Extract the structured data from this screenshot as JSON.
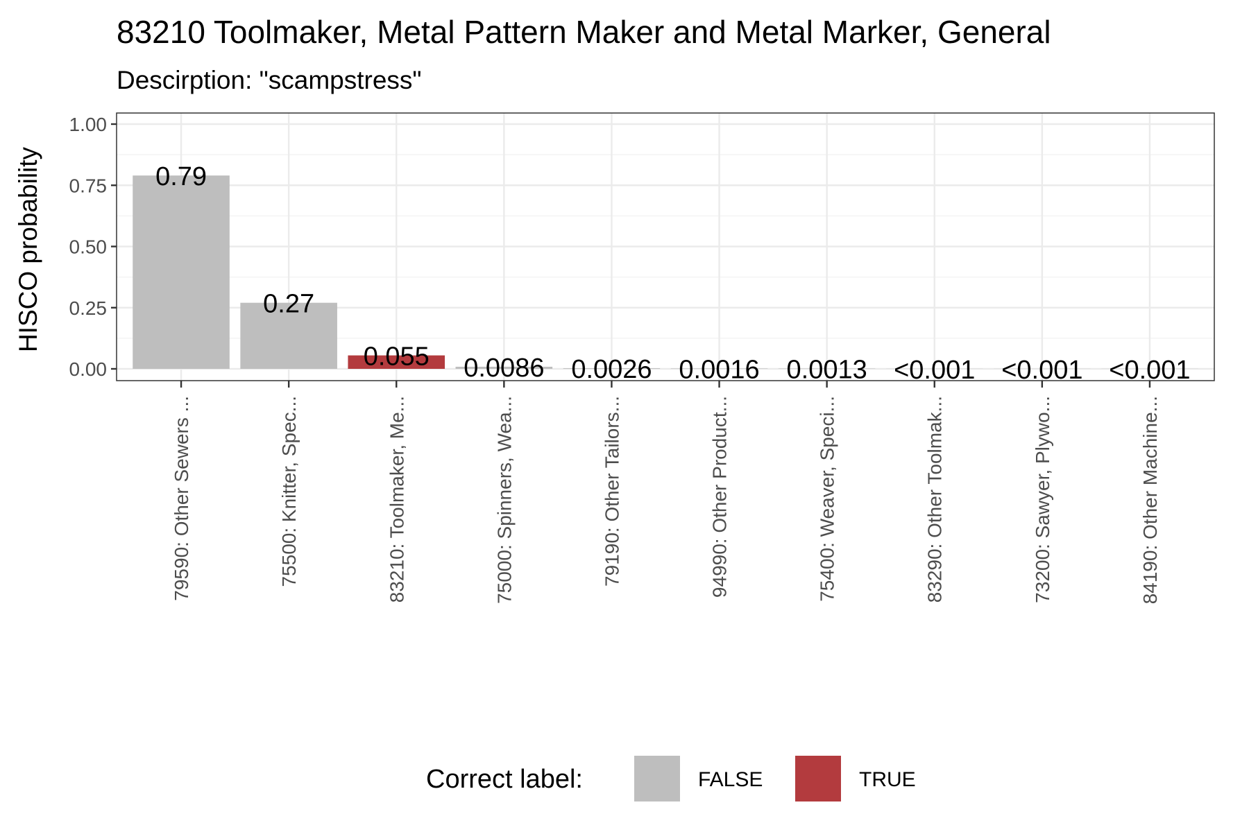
{
  "chart_data": {
    "type": "bar",
    "title": "83210 Toolmaker, Metal Pattern Maker and Metal Marker, General",
    "subtitle": "Descirption: \"scampstress\"",
    "xlabel": "",
    "ylabel": "HISCO probability",
    "ylim": [
      0,
      1.05
    ],
    "yticks": [
      0,
      0.25,
      0.5,
      0.75,
      1.0
    ],
    "ytick_labels": [
      "0.00",
      "0.25",
      "0.50",
      "0.75",
      "1.00"
    ],
    "categories": [
      "79590: Other Sewers ...",
      "75500: Knitter, Spec...",
      "83210: Toolmaker, Me...",
      "75000: Spinners, Wea...",
      "79190: Other Tailors...",
      "94990: Other Product...",
      "75400: Weaver, Speci...",
      "83290: Other Toolmak...",
      "73200: Sawyer, Plywo...",
      "84190: Other Machine..."
    ],
    "values": [
      0.79,
      0.27,
      0.055,
      0.0086,
      0.0026,
      0.0016,
      0.0013,
      0.0005,
      0.0005,
      0.0005
    ],
    "value_labels": [
      "0.79",
      "0.27",
      "0.055",
      "0.0086",
      "0.0026",
      "0.0016",
      "0.0013",
      "<0.001",
      "<0.001",
      "<0.001"
    ],
    "correct": [
      false,
      false,
      true,
      false,
      false,
      false,
      false,
      false,
      false,
      false
    ],
    "grid": true,
    "legend": {
      "title": "Correct label:",
      "position": "bottom",
      "entries": [
        {
          "label": "FALSE",
          "color": "#bebebe"
        },
        {
          "label": "TRUE",
          "color": "#b33b3e"
        }
      ]
    },
    "colors": {
      "false": "#bebebe",
      "true": "#b33b3e",
      "grid": "#ebebeb",
      "panel_border": "#333333"
    }
  }
}
